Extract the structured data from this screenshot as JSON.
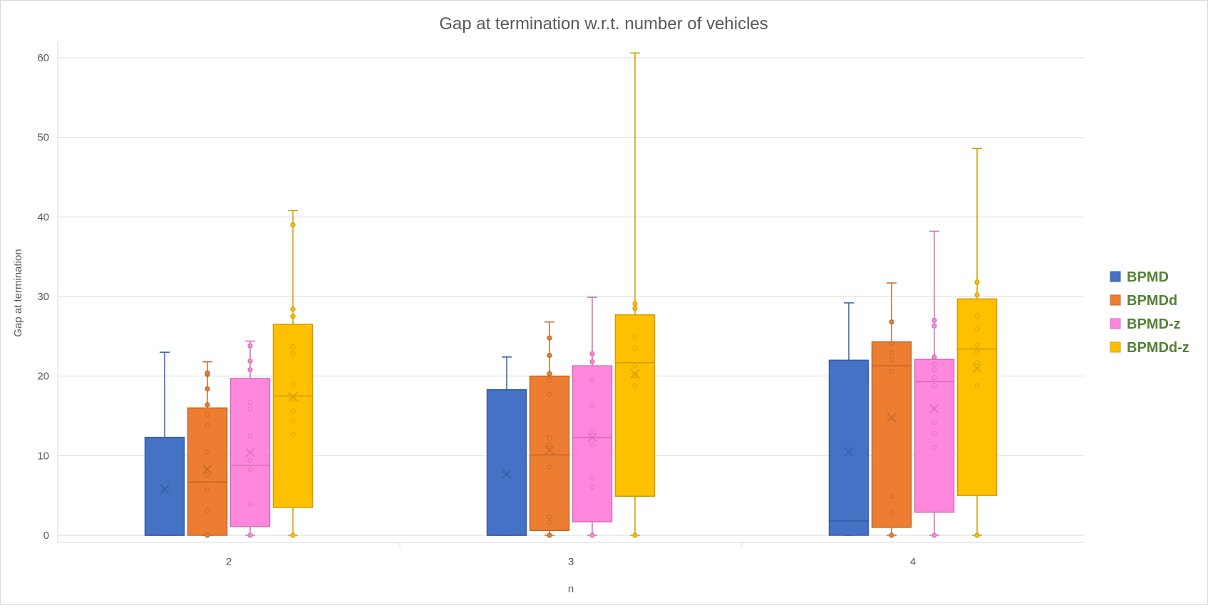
{
  "chart_data": {
    "type": "boxplot",
    "title": "Gap at termination w.r.t. number of vehicles",
    "xlabel": "n",
    "ylabel": "Gap at termination",
    "categories": [
      "2",
      "3",
      "4"
    ],
    "ylim": [
      0,
      62
    ],
    "yticks": [
      0,
      10,
      20,
      30,
      40,
      50,
      60
    ],
    "grid": true,
    "legend_position": "right",
    "series": [
      {
        "name": "BPMD",
        "color": "#4472C4",
        "boxes": [
          {
            "min": 0,
            "q1": 0,
            "median": 0,
            "q3": 12.3,
            "max": 23,
            "mean": 5.8,
            "points": []
          },
          {
            "min": 0,
            "q1": 0,
            "median": 0,
            "q3": 18.3,
            "max": 22.4,
            "mean": 7.7,
            "points": []
          },
          {
            "min": 0,
            "q1": 0,
            "median": 1.8,
            "q3": 22,
            "max": 29.2,
            "mean": 10.5,
            "points": []
          }
        ]
      },
      {
        "name": "BPMDd",
        "color": "#ED7D31",
        "boxes": [
          {
            "min": 0,
            "q1": 0,
            "median": 6.7,
            "q3": 16,
            "max": 21.8,
            "mean": 8.3,
            "points": [
              0,
              3.1,
              5.7,
              7.6,
              10.5,
              13.8,
              15.2,
              16.4,
              18.4,
              20.2,
              20.4
            ]
          },
          {
            "min": 0,
            "q1": 0.6,
            "median": 10.1,
            "q3": 20,
            "max": 26.8,
            "mean": 10.7,
            "points": [
              0,
              1.6,
              2.3,
              8.6,
              11.4,
              12.2,
              17.7,
              19.5,
              20.3,
              22.6,
              24.8
            ]
          },
          {
            "min": 0,
            "q1": 1,
            "median": 21.3,
            "q3": 24.3,
            "max": 31.7,
            "mean": 14.8,
            "points": [
              0,
              2.9,
              4.9,
              20.6,
              22.1,
              23,
              24.1,
              26.8
            ]
          }
        ]
      },
      {
        "name": "BPMD-z",
        "color": "#FF88DD",
        "boxes": [
          {
            "min": 0,
            "q1": 1.1,
            "median": 8.8,
            "q3": 19.7,
            "max": 24.4,
            "mean": 10.4,
            "points": [
              0,
              3.9,
              8.3,
              9.4,
              12.5,
              15.9,
              16.7,
              20.8,
              21.9,
              23.8
            ]
          },
          {
            "min": 0,
            "q1": 1.7,
            "median": 12.3,
            "q3": 21.3,
            "max": 29.9,
            "mean": 12.3,
            "points": [
              0,
              6.1,
              7.2,
              11.4,
              13,
              16.3,
              19.5,
              21.8,
              22.8
            ]
          },
          {
            "min": 0,
            "q1": 2.9,
            "median": 19.3,
            "q3": 22.1,
            "max": 38.2,
            "mean": 15.9,
            "points": [
              0,
              11,
              12.8,
              14.2,
              18.8,
              19.8,
              20.8,
              21.5,
              22.4,
              26.3,
              27
            ]
          }
        ]
      },
      {
        "name": "BPMDd-z",
        "color": "#FFC000",
        "boxes": [
          {
            "min": 0,
            "q1": 3.5,
            "median": 17.5,
            "q3": 26.5,
            "max": 40.8,
            "mean": 17.4,
            "points": [
              0,
              12.7,
              14.4,
              15.6,
              17.1,
              19,
              22.8,
              23.7,
              27.5,
              28.4,
              39
            ]
          },
          {
            "min": 0,
            "q1": 4.9,
            "median": 21.7,
            "q3": 27.7,
            "max": 60.6,
            "mean": 20.3,
            "points": [
              0,
              18.8,
              20.1,
              21.3,
              23.5,
              25,
              28.5,
              29.1
            ]
          },
          {
            "min": 0,
            "q1": 5,
            "median": 23.4,
            "q3": 29.7,
            "max": 48.6,
            "mean": 21,
            "points": [
              0,
              18.8,
              21.7,
              23,
              23.9,
              25.9,
              27.5,
              30.2,
              31.8
            ]
          }
        ]
      }
    ]
  }
}
